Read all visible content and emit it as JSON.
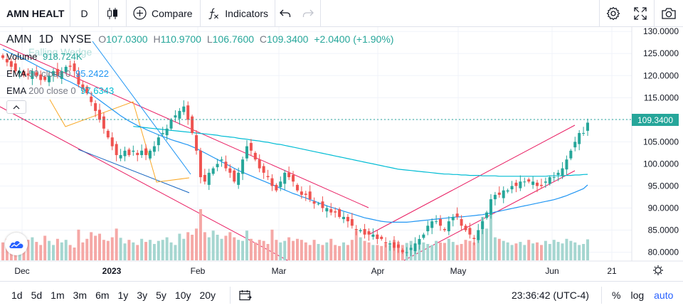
{
  "toolbar": {
    "symbol": "AMN HEALT",
    "interval": "D",
    "compare_label": "Compare",
    "indicators_label": "Indicators"
  },
  "legend": {
    "symbol": "AMN",
    "interval": "1D",
    "exchange": "NYSE",
    "open_label": "O",
    "open": "107.0300",
    "high_label": "H",
    "high": "110.9700",
    "low_label": "L",
    "low": "106.7600",
    "close_label": "C",
    "close": "109.3400",
    "change": "+2.0400 (+1.90%)",
    "falling_wedge": "Falling Wedge",
    "volume_label": "Volume",
    "volume_value": "918.724K",
    "ema50_label": "EMA",
    "ema50_params": "50 close 0",
    "ema50_value": "95.2422",
    "ema200_label": "EMA",
    "ema200_params": "200 close 0",
    "ema200_value": "97.6343"
  },
  "bottombar": {
    "ranges": [
      "1d",
      "5d",
      "1m",
      "3m",
      "6m",
      "1y",
      "3y",
      "5y",
      "10y",
      "20y"
    ],
    "time": "23:36:42 (UTC-4)",
    "percent": "%",
    "log": "log",
    "auto": "auto"
  },
  "colors": {
    "up": "#26a69a",
    "down": "#ef5350",
    "ema50": "#2196f3",
    "ema200": "#00bcd4",
    "channel": "#e91e63",
    "accent": "#2962ff"
  },
  "chart_data": {
    "type": "candlestick",
    "yaxis_ticks": [
      "130.0000",
      "125.0000",
      "120.0000",
      "115.0000",
      "110.0000",
      "105.0000",
      "100.0000",
      "95.0000",
      "90.0000",
      "85.0000",
      "80.0000"
    ],
    "ylim": [
      78,
      131
    ],
    "last_price": "109.3400",
    "x_labels": [
      "Dec",
      "2023",
      "Feb",
      "Mar",
      "Apr",
      "May",
      "Jun",
      "21"
    ],
    "closes": [
      124,
      123,
      122,
      121,
      121,
      120,
      120,
      121,
      120,
      119,
      119,
      120,
      121,
      120,
      121,
      122,
      122,
      121,
      118,
      117,
      116,
      114,
      112,
      110,
      108,
      106,
      104,
      102,
      102,
      103,
      102,
      103,
      102,
      103,
      102,
      103,
      104,
      106,
      107,
      108,
      110,
      111,
      112,
      113,
      110,
      107,
      103,
      97,
      96,
      98,
      99,
      100,
      101,
      99,
      98,
      96,
      98,
      101,
      104,
      103,
      101,
      99,
      98,
      97,
      95,
      94,
      96,
      98,
      97,
      96,
      94,
      93,
      93,
      92,
      91,
      91,
      90,
      90,
      89,
      89,
      88,
      88,
      87,
      86,
      85,
      85,
      84,
      84,
      84,
      83,
      83,
      82,
      82,
      81,
      81,
      80,
      80,
      81,
      82,
      83,
      84,
      86,
      87,
      87,
      86,
      85,
      87,
      88,
      88,
      86,
      85,
      84,
      83,
      85,
      87,
      89,
      92,
      93,
      93,
      94,
      94,
      95,
      95,
      96,
      96,
      96,
      96,
      95,
      95,
      96,
      97,
      97,
      98,
      99,
      101,
      103,
      105,
      107,
      107,
      109.34
    ],
    "ema50": [
      126,
      125.5,
      125,
      124.6,
      124.2,
      123.8,
      123.3,
      122.8,
      122.3,
      121.8,
      121.3,
      120.9,
      120.4,
      120,
      119.5,
      119,
      118.6,
      118.1,
      117.6,
      117,
      116.4,
      115.8,
      115.1,
      114.4,
      113.7,
      113,
      112.3,
      111.6,
      110.9,
      110.3,
      109.7,
      109.2,
      108.7,
      108.3,
      107.8,
      107.4,
      107,
      106.6,
      106.2,
      105.9,
      105.5,
      105.2,
      104.9,
      104.6,
      104.3,
      103.9,
      103.5,
      103,
      102.5,
      102,
      101.5,
      101,
      100.5,
      100,
      99.5,
      99,
      98.5,
      98.1,
      97.7,
      97.3,
      96.9,
      96.5,
      96.1,
      95.7,
      95.3,
      94.9,
      94.5,
      94.1,
      93.7,
      93.3,
      93,
      92.6,
      92.3,
      91.9,
      91.6,
      91.2,
      90.9,
      90.5,
      90.2,
      89.9,
      89.6,
      89.3,
      89,
      88.7,
      88.4,
      88.1,
      87.8,
      87.6,
      87.4,
      87.2,
      87,
      86.9,
      86.8,
      86.8,
      86.8,
      86.8,
      86.8,
      86.9,
      87,
      87.1,
      87.2,
      87.3,
      87.4,
      87.5,
      87.6,
      87.7,
      87.8,
      87.9,
      88,
      88,
      88.1,
      88.2,
      88.3,
      88.4,
      88.5,
      88.7,
      88.9,
      89.1,
      89.3,
      89.5,
      89.7,
      89.9,
      90.1,
      90.3,
      90.5,
      90.7,
      90.9,
      91.1,
      91.3,
      91.5,
      91.7,
      91.9,
      92.2,
      92.5,
      92.8,
      93.2,
      93.6,
      94,
      94.4,
      95.24
    ],
    "ema200": [
      null,
      null,
      null,
      null,
      null,
      null,
      null,
      null,
      null,
      null,
      null,
      null,
      null,
      null,
      null,
      null,
      null,
      null,
      null,
      null,
      null,
      null,
      null,
      null,
      null,
      null,
      null,
      null,
      null,
      null,
      null,
      108.5,
      108.4,
      108.3,
      108.2,
      108.1,
      108,
      107.9,
      107.8,
      107.7,
      107.6,
      107.5,
      107.4,
      107.3,
      107.2,
      107.1,
      107,
      106.9,
      106.8,
      106.7,
      106.6,
      106.5,
      106.3,
      106.2,
      106.1,
      106,
      105.8,
      105.7,
      105.6,
      105.4,
      105.3,
      105.2,
      105,
      104.9,
      104.7,
      104.5,
      104.4,
      104.2,
      104,
      103.8,
      103.6,
      103.4,
      103.2,
      103,
      102.8,
      102.6,
      102.4,
      102.2,
      102,
      101.8,
      101.6,
      101.4,
      101.2,
      101,
      100.8,
      100.6,
      100.4,
      100.2,
      100,
      99.8,
      99.6,
      99.4,
      99.2,
      99,
      98.8,
      98.7,
      98.6,
      98.5,
      98.4,
      98.3,
      98.2,
      98.1,
      98,
      97.9,
      97.8,
      97.7,
      97.7,
      97.6,
      97.6,
      97.5,
      97.5,
      97.4,
      97.4,
      97.4,
      97.3,
      97.3,
      97.3,
      97.3,
      97.2,
      97.2,
      97.2,
      97.2,
      97.2,
      97.2,
      97.2,
      97.2,
      97.2,
      97.2,
      97.2,
      97.2,
      97.3,
      97.3,
      97.3,
      97.3,
      97.4,
      97.4,
      97.5,
      97.5,
      97.6,
      97.63
    ],
    "volume_levels": [
      0.35,
      0.42,
      0.3,
      0.5,
      0.28,
      0.33,
      0.4,
      0.45,
      0.36,
      0.3,
      0.48,
      0.38,
      0.3,
      0.42,
      0.35,
      0.4,
      0.3,
      0.25,
      0.6,
      0.35,
      0.42,
      0.55,
      0.48,
      0.52,
      0.4,
      0.38,
      0.45,
      0.62,
      0.44,
      0.33,
      0.4,
      0.35,
      0.3,
      0.42,
      0.36,
      0.4,
      0.32,
      0.38,
      0.4,
      0.45,
      0.35,
      0.3,
      0.52,
      0.42,
      0.55,
      0.5,
      0.62,
      1.0,
      0.55,
      0.45,
      0.58,
      0.5,
      0.42,
      0.48,
      0.55,
      0.45,
      0.4,
      0.38,
      0.58,
      0.42,
      0.35,
      0.4,
      0.38,
      0.32,
      0.6,
      0.4,
      0.35,
      0.38,
      0.45,
      0.38,
      0.42,
      0.4,
      0.35,
      0.3,
      0.4,
      0.32,
      0.3,
      0.35,
      0.42,
      0.3,
      0.28,
      0.35,
      0.3,
      0.4,
      0.58,
      0.45,
      0.38,
      0.35,
      0.3,
      0.3,
      0.28,
      0.32,
      0.3,
      0.4,
      0.36,
      0.3,
      0.34,
      0.38,
      0.3,
      0.4,
      0.35,
      0.32,
      0.3,
      0.38,
      0.35,
      0.34,
      0.42,
      0.36,
      0.3,
      0.32,
      0.4,
      0.38,
      0.35,
      0.48,
      0.85,
      0.62,
      0.9,
      0.45,
      0.42,
      0.38,
      0.35,
      0.3,
      0.33,
      0.36,
      0.3,
      0.4,
      0.33,
      0.35,
      0.3,
      0.38,
      0.32,
      0.4,
      0.36,
      0.33,
      0.42,
      0.38,
      0.35,
      0.3,
      0.32,
      0.41
    ]
  }
}
